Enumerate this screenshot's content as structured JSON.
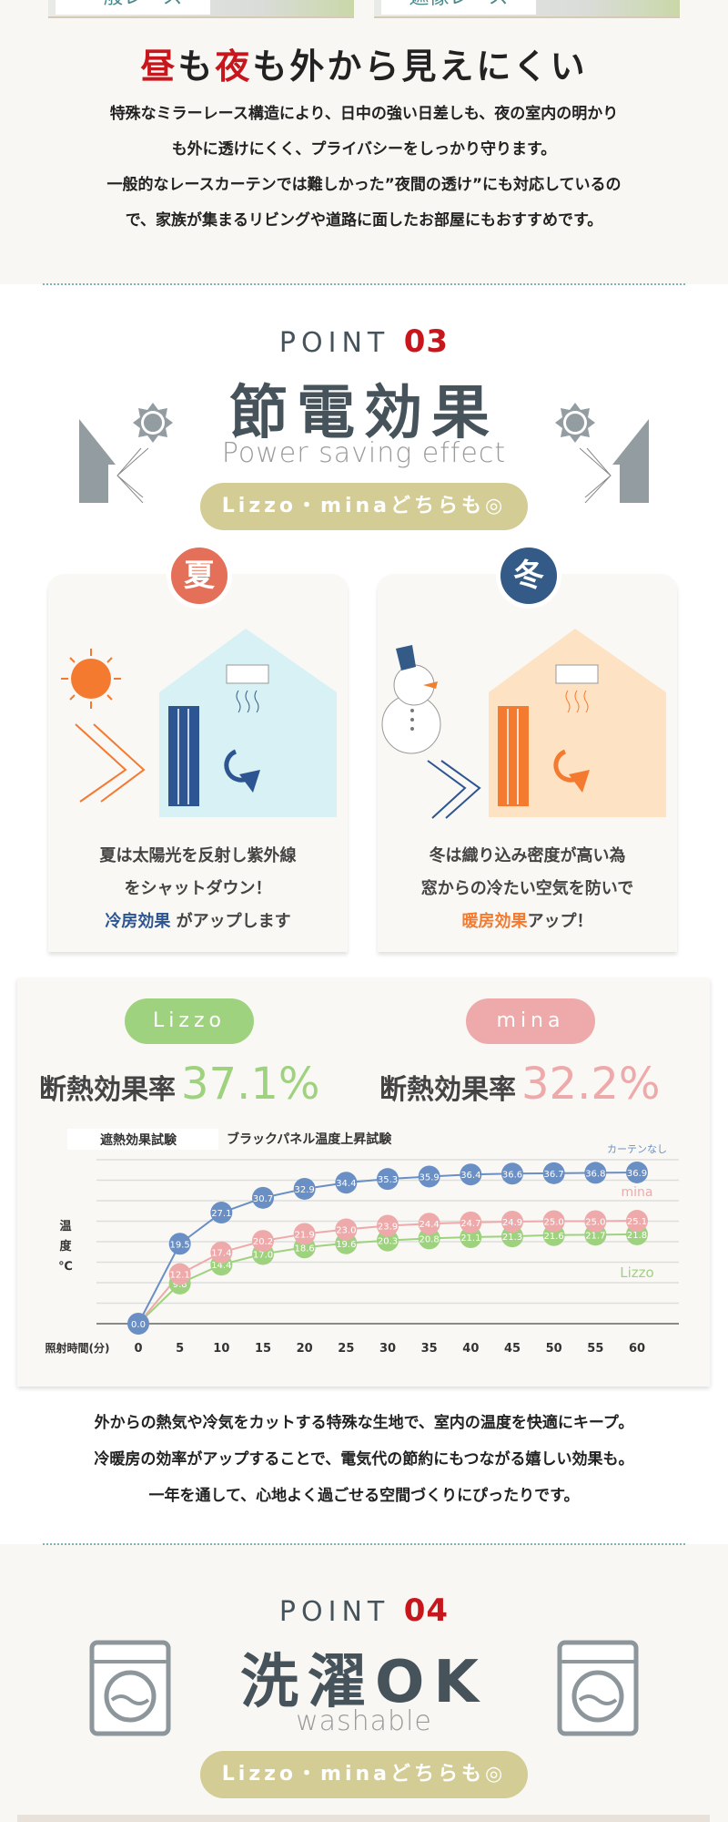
{
  "top": {
    "photo_labels": [
      "一般レース",
      "遮像レース"
    ],
    "headline": {
      "part1": "昼",
      "part2": "も",
      "part3": "夜",
      "part4": "も外から見えにくい"
    },
    "body_lines": [
      "特殊なミラーレース構造により、日中の強い日差しも、夜の室内の明かり",
      "も外に透けにくく、プライバシーをしっかり守ります。",
      "一般的なレースカーテンでは難しかった”夜間の透け”にも対応しているの",
      "で、家族が集まるリビングや道路に面したお部屋にもおすすめです。"
    ]
  },
  "point03": {
    "point_label": "POINT",
    "number": "03",
    "title": "節電効果",
    "subtitle": "Power saving effect",
    "pill": "Lizzo・minaどちらも◎",
    "summer": {
      "badge": "夏",
      "lines": [
        "夏は太陽光を反射し紫外線",
        "をシャットダウン！"
      ],
      "highlight": "冷房効果",
      "tail": " がアップします"
    },
    "winter": {
      "badge": "冬",
      "lines": [
        "冬は織り込み密度が高い為",
        "窓からの冷たい空気を防いで"
      ],
      "highlight": "暖房効果",
      "tail": "アップ！"
    },
    "lizzo": {
      "tag": "Lizzo",
      "rate_label": "断熱効果率",
      "rate": "37.1%"
    },
    "mina": {
      "tag": "mina",
      "rate_label": "断熱効果率",
      "rate": "32.2%"
    },
    "bottom_lines": [
      "外からの熱気や冷気をカットする特殊な生地で、室内の温度を快適にキープ。",
      "冷暖房の効率がアップすることで、電気代の節約にもつながる嬉しい効果も。",
      "一年を通して、心地よく過ごせる空間づくりにぴったりです。"
    ]
  },
  "colors": {
    "red": "#c8161d",
    "blue": "#6a8fc4",
    "pink": "#eeaaaa",
    "green": "#9fd27e",
    "summer": "#e4705a",
    "winter": "#345b87",
    "pill": "#d3cc94"
  },
  "chart_data": {
    "type": "line",
    "tab_active": "遮熱効果試験",
    "title": "ブラックパネル温度上昇試験",
    "ylabel": "温度℃",
    "xlabel": "照射時間(分)",
    "x": [
      0,
      5,
      10,
      15,
      20,
      25,
      30,
      35,
      40,
      45,
      50,
      55,
      60
    ],
    "ylim": [
      0,
      40
    ],
    "grid": true,
    "series": [
      {
        "name": "カーテンなし",
        "color": "#6a8fc4",
        "values": [
          0.0,
          19.5,
          27.1,
          30.7,
          32.9,
          34.4,
          35.3,
          35.9,
          36.4,
          36.6,
          36.7,
          36.8,
          36.9
        ]
      },
      {
        "name": "mina",
        "color": "#eeaaaa",
        "values": [
          0.0,
          12.1,
          17.4,
          20.2,
          21.9,
          23.0,
          23.9,
          24.4,
          24.7,
          24.9,
          25.0,
          25.0,
          25.1
        ]
      },
      {
        "name": "Lizzo",
        "color": "#9fd27e",
        "values": [
          0.0,
          9.8,
          14.4,
          17.0,
          18.6,
          19.6,
          20.3,
          20.8,
          21.1,
          21.3,
          21.6,
          21.7,
          21.8
        ]
      }
    ]
  },
  "point04": {
    "point_label": "POINT",
    "number": "04",
    "title": "洗濯OK",
    "subtitle": "washable",
    "pill": "Lizzo・minaどちらも◎"
  }
}
